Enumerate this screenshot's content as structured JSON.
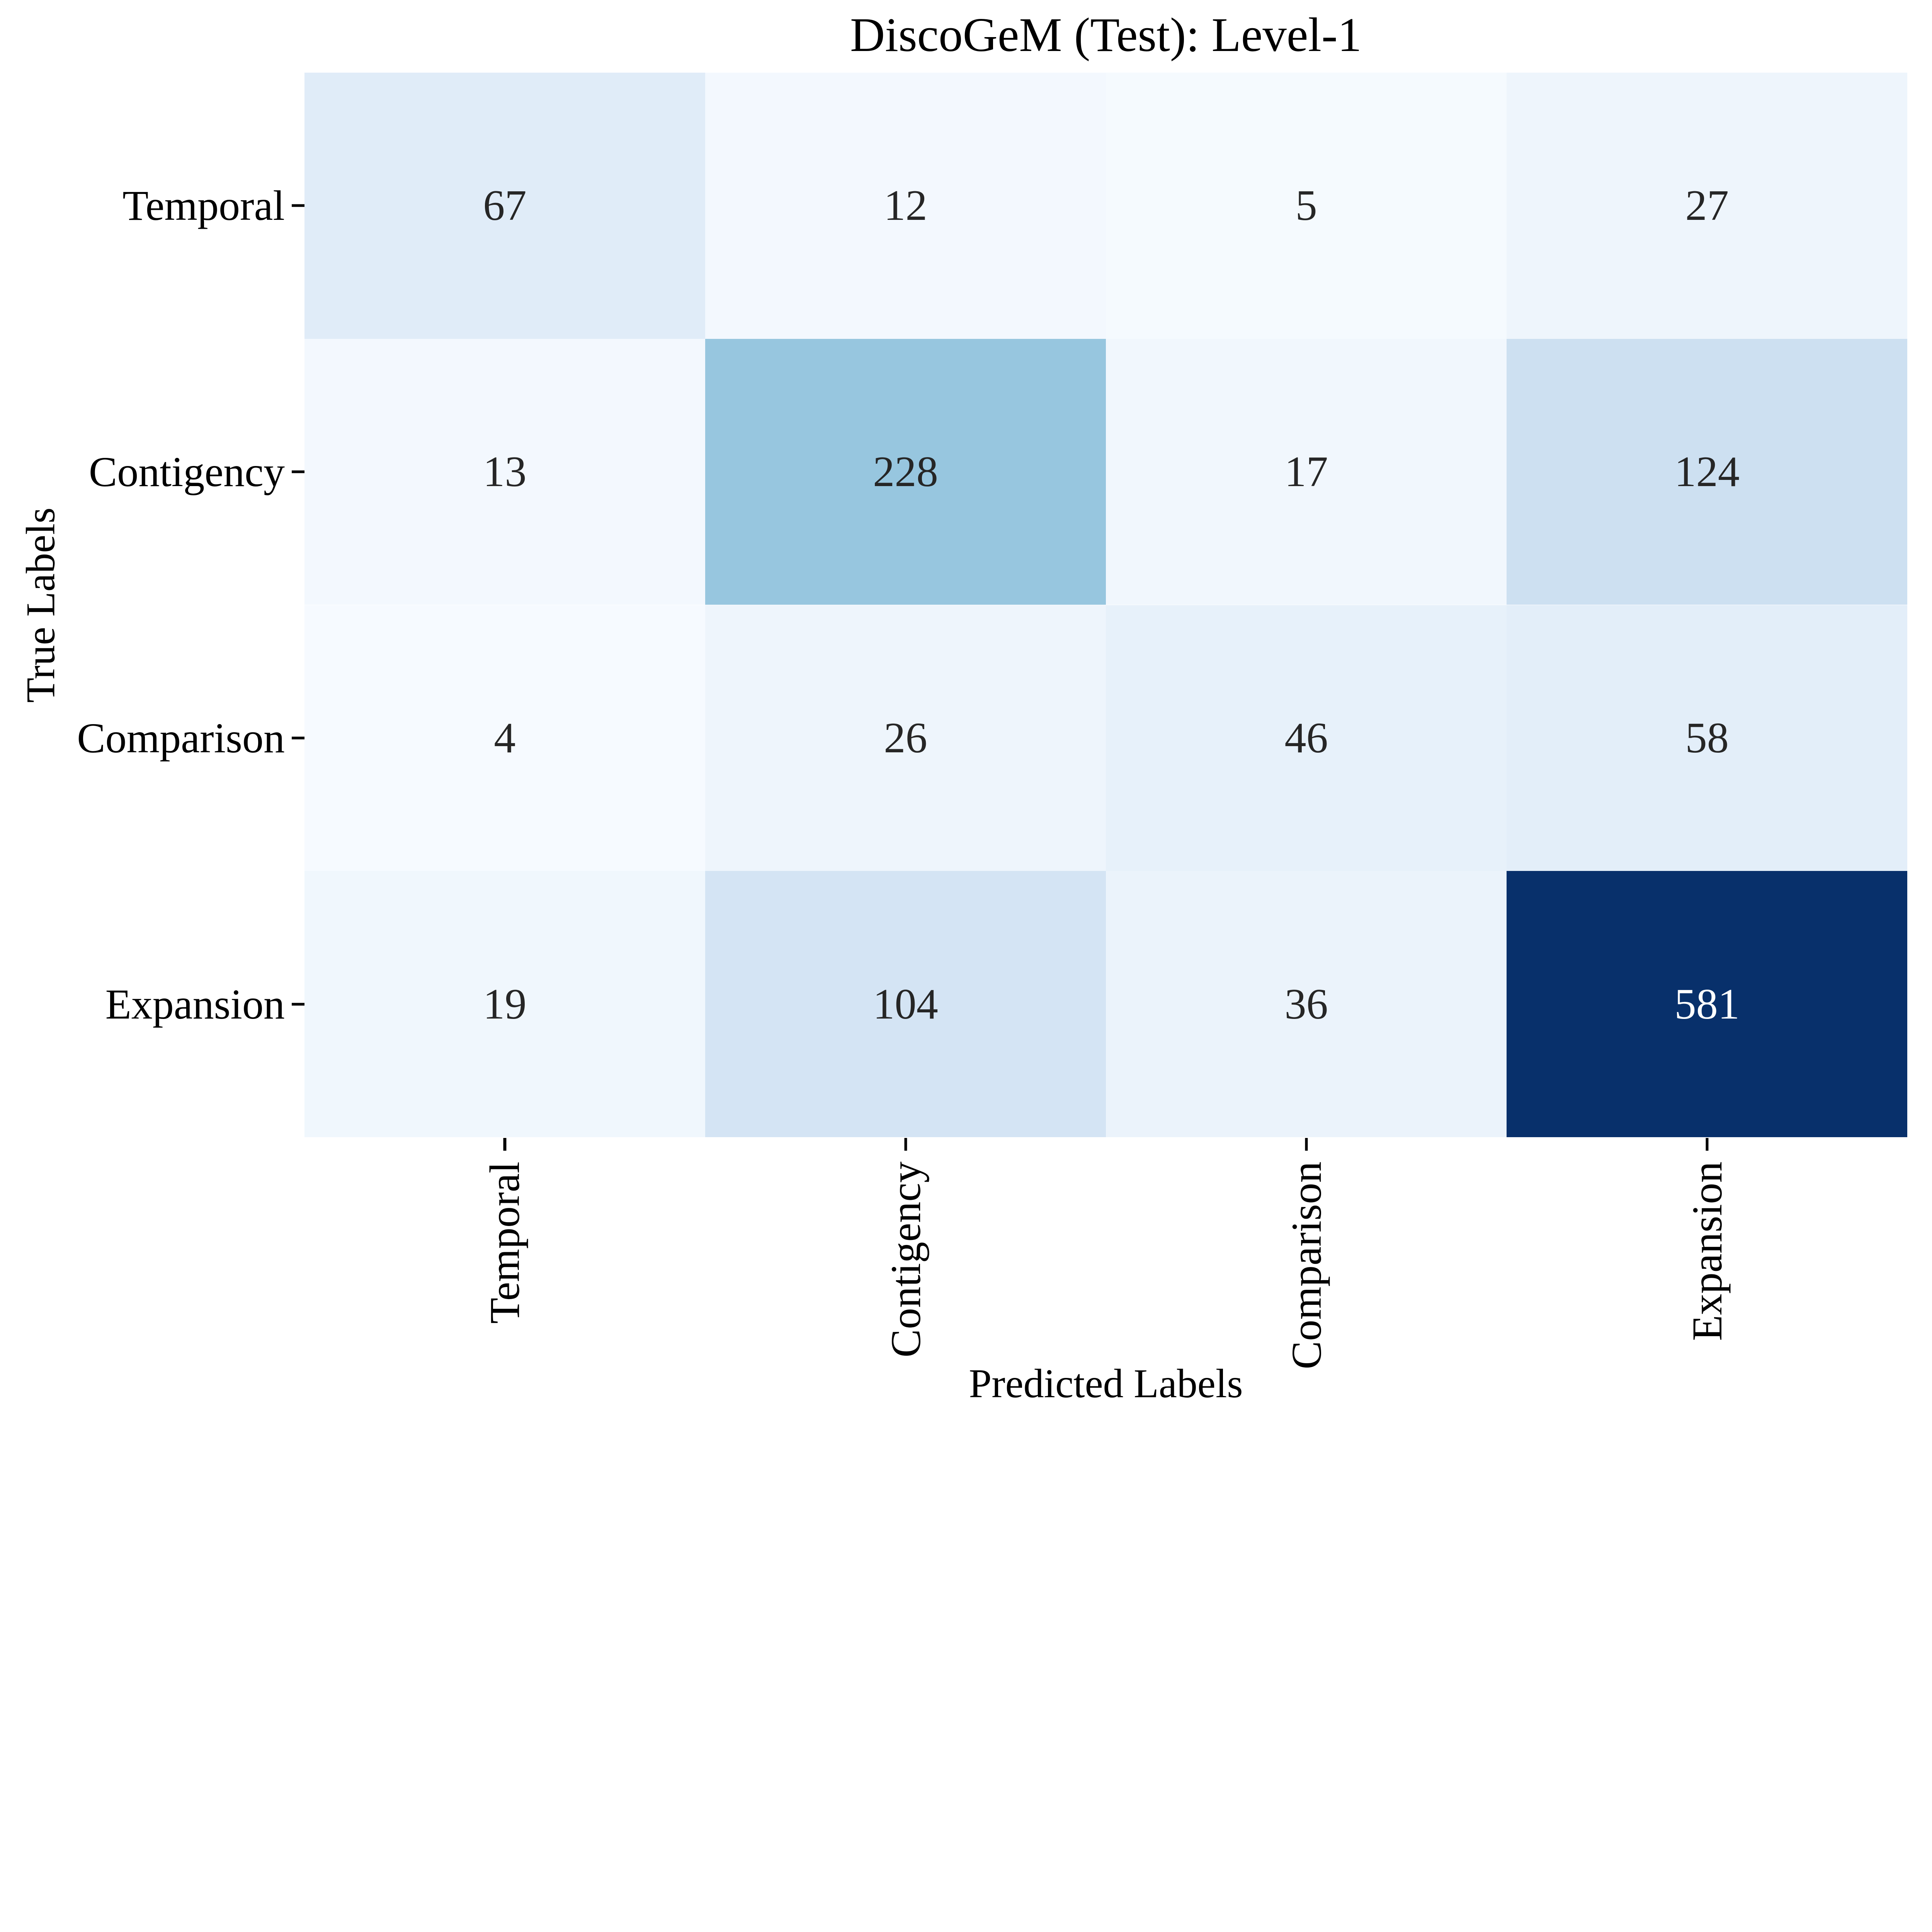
{
  "chart_data": {
    "type": "heatmap",
    "title": "DiscoGeM (Test): Level-1",
    "xlabel": "Predicted Labels",
    "ylabel": "True Labels",
    "x_tick_labels": [
      "Temporal",
      "Contigency",
      "Comparison",
      "Expansion"
    ],
    "y_tick_labels": [
      "Temporal",
      "Contigency",
      "Comparison",
      "Expansion"
    ],
    "values": [
      [
        67,
        12,
        5,
        27
      ],
      [
        13,
        228,
        17,
        124
      ],
      [
        4,
        26,
        46,
        58
      ],
      [
        19,
        104,
        36,
        581
      ]
    ],
    "vmin": 0,
    "vmax": 581,
    "colormap": "Blues",
    "colormap_anchors": [
      [
        0.0,
        "#f7fbff"
      ],
      [
        0.125,
        "#deebf7"
      ],
      [
        0.25,
        "#c6dbef"
      ],
      [
        0.375,
        "#9ecae1"
      ],
      [
        0.5,
        "#6baed6"
      ],
      [
        0.625,
        "#4292c6"
      ],
      [
        0.75,
        "#2171b5"
      ],
      [
        0.875,
        "#08519c"
      ],
      [
        1.0,
        "#08306b"
      ]
    ],
    "annotation_text_dark": "#262626",
    "annotation_text_light": "#ffffff",
    "tick_color": "#000000",
    "background": "#ffffff",
    "grid": false,
    "legend": "none"
  }
}
